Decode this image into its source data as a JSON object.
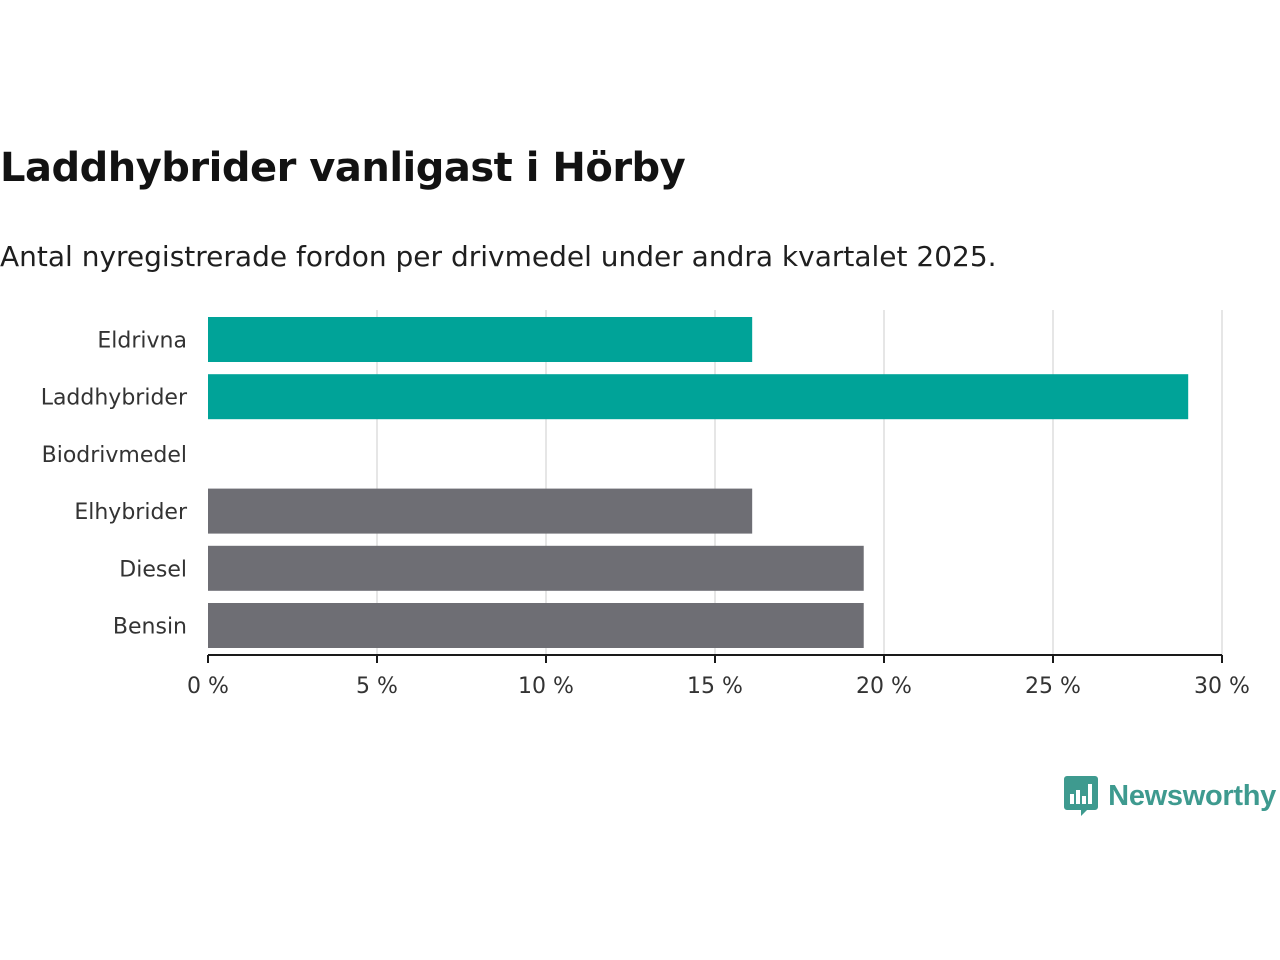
{
  "header": {
    "title": "Laddhybrider vanligast i Hörby",
    "subtitle": "Antal nyregistrerade fordon per drivmedel under andra kvartalet 2025."
  },
  "brand": {
    "name": "Newsworthy",
    "icon": "newsworthy-logo-icon",
    "color": "#3e9a8f"
  },
  "chart_data": {
    "type": "bar",
    "orientation": "horizontal",
    "categories": [
      "Eldrivna",
      "Laddhybrider",
      "Biodrivmedel",
      "Elhybrider",
      "Diesel",
      "Bensin"
    ],
    "values": [
      16.1,
      29.0,
      0,
      16.1,
      19.4,
      19.4
    ],
    "colors": [
      "#00a398",
      "#00a398",
      "#00a398",
      "#6e6e74",
      "#6e6e74",
      "#6e6e74"
    ],
    "x_ticks": [
      "0 %",
      "5 %",
      "10 %",
      "15 %",
      "20 %",
      "25 %",
      "30 %"
    ],
    "xlim": [
      0,
      30
    ],
    "title": "Laddhybrider vanligast i Hörby",
    "xlabel": "",
    "ylabel": "",
    "grid": true,
    "legend": "none"
  }
}
